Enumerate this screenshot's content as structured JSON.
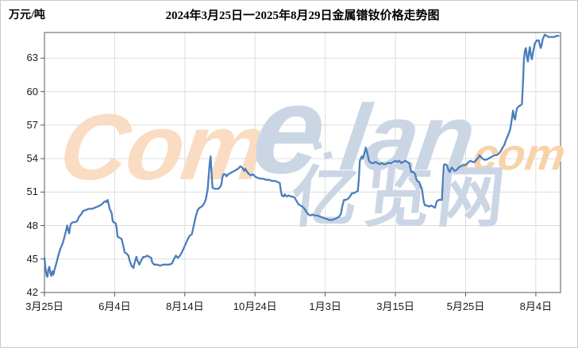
{
  "chart_data": {
    "type": "line",
    "title": "2024年3月25日一2025年8月29日金属镨钕价格走势图",
    "unit_label": "万元/吨",
    "ylabel": "万元/吨",
    "xlabel": "",
    "grid": true,
    "legend_position": "none",
    "y_ticks": [
      42,
      45,
      48,
      51,
      54,
      57,
      60,
      63
    ],
    "y_range": [
      42,
      65.3
    ],
    "x_tick_labels": [
      "3月25日",
      "6月4日",
      "8月14日",
      "10月24日",
      "1月3日",
      "3月15日",
      "5月25日",
      "8月4日"
    ],
    "x_tick_days": [
      0,
      71,
      142,
      213,
      284,
      355,
      426,
      497
    ],
    "x_total_days": 522,
    "x_axis_note": "daily prices, day 0 = 2024-03-25, day 522 = 2025-08-29",
    "line_color": "#4A7EBB",
    "series": [
      {
        "name": "金属镨钕价格",
        "points": [
          [
            0,
            45.1
          ],
          [
            1,
            44.2
          ],
          [
            2,
            43.6
          ],
          [
            3,
            43.4
          ],
          [
            4,
            44.1
          ],
          [
            5,
            44.3
          ],
          [
            6,
            43.7
          ],
          [
            7,
            43.5
          ],
          [
            8,
            43.9
          ],
          [
            9,
            43.6
          ],
          [
            10,
            44.0
          ],
          [
            12,
            44.6
          ],
          [
            14,
            45.3
          ],
          [
            16,
            45.9
          ],
          [
            18,
            46.3
          ],
          [
            20,
            46.9
          ],
          [
            22,
            47.6
          ],
          [
            23,
            48.0
          ],
          [
            24,
            47.6
          ],
          [
            25,
            47.3
          ],
          [
            26,
            47.9
          ],
          [
            27,
            48.2
          ],
          [
            29,
            48.3
          ],
          [
            31,
            48.3
          ],
          [
            33,
            48.4
          ],
          [
            35,
            48.8
          ],
          [
            37,
            49.0
          ],
          [
            39,
            49.3
          ],
          [
            42,
            49.4
          ],
          [
            45,
            49.5
          ],
          [
            48,
            49.5
          ],
          [
            51,
            49.6
          ],
          [
            54,
            49.7
          ],
          [
            56,
            49.8
          ],
          [
            58,
            49.9
          ],
          [
            60,
            50.1
          ],
          [
            62,
            50.2
          ],
          [
            63,
            50.1
          ],
          [
            64,
            50.3
          ],
          [
            65,
            49.9
          ],
          [
            66,
            49.5
          ],
          [
            68,
            49.1
          ],
          [
            69,
            48.4
          ],
          [
            70,
            48.3
          ],
          [
            72,
            48.2
          ],
          [
            73,
            47.8
          ],
          [
            74,
            47.0
          ],
          [
            76,
            46.9
          ],
          [
            78,
            46.8
          ],
          [
            80,
            46.1
          ],
          [
            81,
            45.6
          ],
          [
            83,
            45.5
          ],
          [
            85,
            45.3
          ],
          [
            86,
            44.9
          ],
          [
            88,
            44.4
          ],
          [
            90,
            44.2
          ],
          [
            91,
            44.6
          ],
          [
            93,
            45.2
          ],
          [
            94,
            44.9
          ],
          [
            96,
            44.5
          ],
          [
            98,
            44.9
          ],
          [
            100,
            45.2
          ],
          [
            102,
            45.2
          ],
          [
            104,
            45.3
          ],
          [
            106,
            45.2
          ],
          [
            108,
            45.1
          ],
          [
            109,
            44.7
          ],
          [
            111,
            44.5
          ],
          [
            114,
            44.5
          ],
          [
            117,
            44.4
          ],
          [
            120,
            44.5
          ],
          [
            123,
            44.5
          ],
          [
            126,
            44.5
          ],
          [
            129,
            44.6
          ],
          [
            131,
            45.0
          ],
          [
            133,
            45.3
          ],
          [
            135,
            45.1
          ],
          [
            137,
            45.3
          ],
          [
            139,
            45.6
          ],
          [
            141,
            46.0
          ],
          [
            143,
            46.4
          ],
          [
            145,
            46.8
          ],
          [
            147,
            47.1
          ],
          [
            149,
            47.2
          ],
          [
            150,
            47.6
          ],
          [
            151,
            48.0
          ],
          [
            153,
            48.8
          ],
          [
            155,
            49.4
          ],
          [
            157,
            49.6
          ],
          [
            159,
            49.7
          ],
          [
            161,
            49.9
          ],
          [
            163,
            50.3
          ],
          [
            165,
            51.2
          ],
          [
            166,
            52.3
          ],
          [
            167,
            53.5
          ],
          [
            168,
            54.2
          ],
          [
            169,
            52.8
          ],
          [
            170,
            51.4
          ],
          [
            172,
            51.3
          ],
          [
            174,
            51.3
          ],
          [
            176,
            51.3
          ],
          [
            178,
            51.5
          ],
          [
            179,
            51.7
          ],
          [
            180,
            52.3
          ],
          [
            181,
            52.6
          ],
          [
            183,
            52.6
          ],
          [
            184,
            52.4
          ],
          [
            186,
            52.6
          ],
          [
            188,
            52.7
          ],
          [
            190,
            52.8
          ],
          [
            192,
            52.9
          ],
          [
            194,
            53.0
          ],
          [
            196,
            53.1
          ],
          [
            198,
            53.3
          ],
          [
            200,
            53.2
          ],
          [
            202,
            52.9
          ],
          [
            203,
            53.1
          ],
          [
            205,
            52.8
          ],
          [
            207,
            52.6
          ],
          [
            209,
            52.5
          ],
          [
            211,
            52.6
          ],
          [
            213,
            52.4
          ],
          [
            215,
            52.3
          ],
          [
            218,
            52.2
          ],
          [
            221,
            52.2
          ],
          [
            224,
            52.1
          ],
          [
            227,
            52.1
          ],
          [
            230,
            52.0
          ],
          [
            233,
            52.0
          ],
          [
            236,
            51.9
          ],
          [
            238,
            51.8
          ],
          [
            239,
            51.2
          ],
          [
            240,
            50.7
          ],
          [
            242,
            50.6
          ],
          [
            243,
            50.8
          ],
          [
            245,
            50.6
          ],
          [
            247,
            50.7
          ],
          [
            249,
            50.6
          ],
          [
            251,
            50.6
          ],
          [
            253,
            50.5
          ],
          [
            255,
            50.2
          ],
          [
            257,
            49.9
          ],
          [
            259,
            49.8
          ],
          [
            261,
            49.7
          ],
          [
            263,
            49.5
          ],
          [
            265,
            49.2
          ],
          [
            267,
            49.0
          ],
          [
            269,
            48.9
          ],
          [
            271,
            49.0
          ],
          [
            273,
            48.9
          ],
          [
            276,
            48.9
          ],
          [
            279,
            48.8
          ],
          [
            282,
            48.7
          ],
          [
            285,
            48.6
          ],
          [
            288,
            48.5
          ],
          [
            291,
            48.5
          ],
          [
            294,
            48.6
          ],
          [
            296,
            48.7
          ],
          [
            298,
            48.8
          ],
          [
            300,
            49.1
          ],
          [
            301,
            49.6
          ],
          [
            302,
            50.0
          ],
          [
            303,
            50.3
          ],
          [
            305,
            50.3
          ],
          [
            307,
            50.4
          ],
          [
            309,
            50.6
          ],
          [
            311,
            50.9
          ],
          [
            313,
            50.9
          ],
          [
            315,
            51.0
          ],
          [
            317,
            51.1
          ],
          [
            318,
            52.2
          ],
          [
            319,
            53.8
          ],
          [
            320,
            54.0
          ],
          [
            321,
            54.2
          ],
          [
            322,
            54.0
          ],
          [
            323,
            54.3
          ],
          [
            324,
            54.6
          ],
          [
            325,
            55.0
          ],
          [
            326,
            54.7
          ],
          [
            327,
            54.3
          ],
          [
            328,
            53.9
          ],
          [
            329,
            53.7
          ],
          [
            331,
            53.6
          ],
          [
            333,
            53.6
          ],
          [
            335,
            53.7
          ],
          [
            337,
            53.6
          ],
          [
            339,
            53.5
          ],
          [
            341,
            53.6
          ],
          [
            343,
            53.5
          ],
          [
            345,
            53.5
          ],
          [
            347,
            53.6
          ],
          [
            349,
            53.6
          ],
          [
            351,
            53.6
          ],
          [
            353,
            53.7
          ],
          [
            355,
            53.8
          ],
          [
            357,
            53.7
          ],
          [
            359,
            53.8
          ],
          [
            361,
            53.6
          ],
          [
            363,
            53.7
          ],
          [
            365,
            53.8
          ],
          [
            367,
            53.7
          ],
          [
            369,
            53.6
          ],
          [
            370,
            53.2
          ],
          [
            371,
            52.8
          ],
          [
            373,
            52.8
          ],
          [
            375,
            52.6
          ],
          [
            376,
            52.2
          ],
          [
            377,
            52.0
          ],
          [
            379,
            51.9
          ],
          [
            381,
            51.4
          ],
          [
            382,
            51.2
          ],
          [
            383,
            50.5
          ],
          [
            384,
            50.0
          ],
          [
            385,
            49.8
          ],
          [
            387,
            49.8
          ],
          [
            389,
            49.7
          ],
          [
            391,
            49.8
          ],
          [
            393,
            49.7
          ],
          [
            395,
            49.6
          ],
          [
            396,
            49.9
          ],
          [
            397,
            50.2
          ],
          [
            399,
            50.3
          ],
          [
            401,
            50.3
          ],
          [
            402,
            50.3
          ],
          [
            403,
            52.0
          ],
          [
            404,
            53.4
          ],
          [
            405,
            53.5
          ],
          [
            407,
            53.4
          ],
          [
            409,
            52.9
          ],
          [
            410,
            52.8
          ],
          [
            412,
            53.2
          ],
          [
            413,
            53.1
          ],
          [
            415,
            52.9
          ],
          [
            417,
            53.0
          ],
          [
            419,
            53.2
          ],
          [
            421,
            53.3
          ],
          [
            423,
            53.4
          ],
          [
            425,
            53.4
          ],
          [
            427,
            53.5
          ],
          [
            429,
            53.7
          ],
          [
            431,
            53.8
          ],
          [
            433,
            53.7
          ],
          [
            435,
            53.7
          ],
          [
            437,
            53.9
          ],
          [
            439,
            54.1
          ],
          [
            440,
            54.3
          ],
          [
            441,
            54.2
          ],
          [
            443,
            54.0
          ],
          [
            445,
            53.9
          ],
          [
            447,
            53.9
          ],
          [
            449,
            54.0
          ],
          [
            451,
            54.1
          ],
          [
            453,
            54.2
          ],
          [
            455,
            54.3
          ],
          [
            457,
            54.3
          ],
          [
            459,
            54.4
          ],
          [
            461,
            54.6
          ],
          [
            463,
            54.9
          ],
          [
            465,
            55.2
          ],
          [
            467,
            55.7
          ],
          [
            469,
            56.1
          ],
          [
            471,
            56.6
          ],
          [
            472,
            57.1
          ],
          [
            473,
            57.7
          ],
          [
            474,
            58.3
          ],
          [
            475,
            57.7
          ],
          [
            476,
            57.5
          ],
          [
            477,
            58.1
          ],
          [
            478,
            58.5
          ],
          [
            480,
            58.7
          ],
          [
            482,
            58.8
          ],
          [
            483,
            58.9
          ],
          [
            484,
            60.8
          ],
          [
            485,
            62.9
          ],
          [
            486,
            63.7
          ],
          [
            487,
            63.9
          ],
          [
            488,
            63.1
          ],
          [
            489,
            62.7
          ],
          [
            490,
            63.5
          ],
          [
            491,
            64.0
          ],
          [
            492,
            63.3
          ],
          [
            493,
            62.9
          ],
          [
            494,
            63.4
          ],
          [
            495,
            63.9
          ],
          [
            496,
            64.3
          ],
          [
            498,
            64.6
          ],
          [
            500,
            64.6
          ],
          [
            501,
            64.2
          ],
          [
            502,
            63.9
          ],
          [
            503,
            64.2
          ],
          [
            504,
            64.7
          ],
          [
            506,
            65.1
          ],
          [
            508,
            65.0
          ],
          [
            510,
            64.9
          ],
          [
            512,
            64.9
          ],
          [
            514,
            64.9
          ],
          [
            516,
            64.9
          ],
          [
            518,
            65.0
          ],
          [
            520,
            65.0
          ]
        ]
      }
    ]
  },
  "watermark": {
    "part_com": "Com",
    "part_e": "e",
    "part_lan": "lan",
    "part_dotcom": ".com",
    "part_cn": "亿览网",
    "color_orange": "#F9DCC2",
    "color_orange_dark": "#F8D3A8",
    "color_blue": "#CBD6E5"
  },
  "colors": {
    "grid": "#DDDDDD",
    "plot_border": "#595959",
    "tick": "#595959",
    "label_text": "#1A1A1A"
  }
}
